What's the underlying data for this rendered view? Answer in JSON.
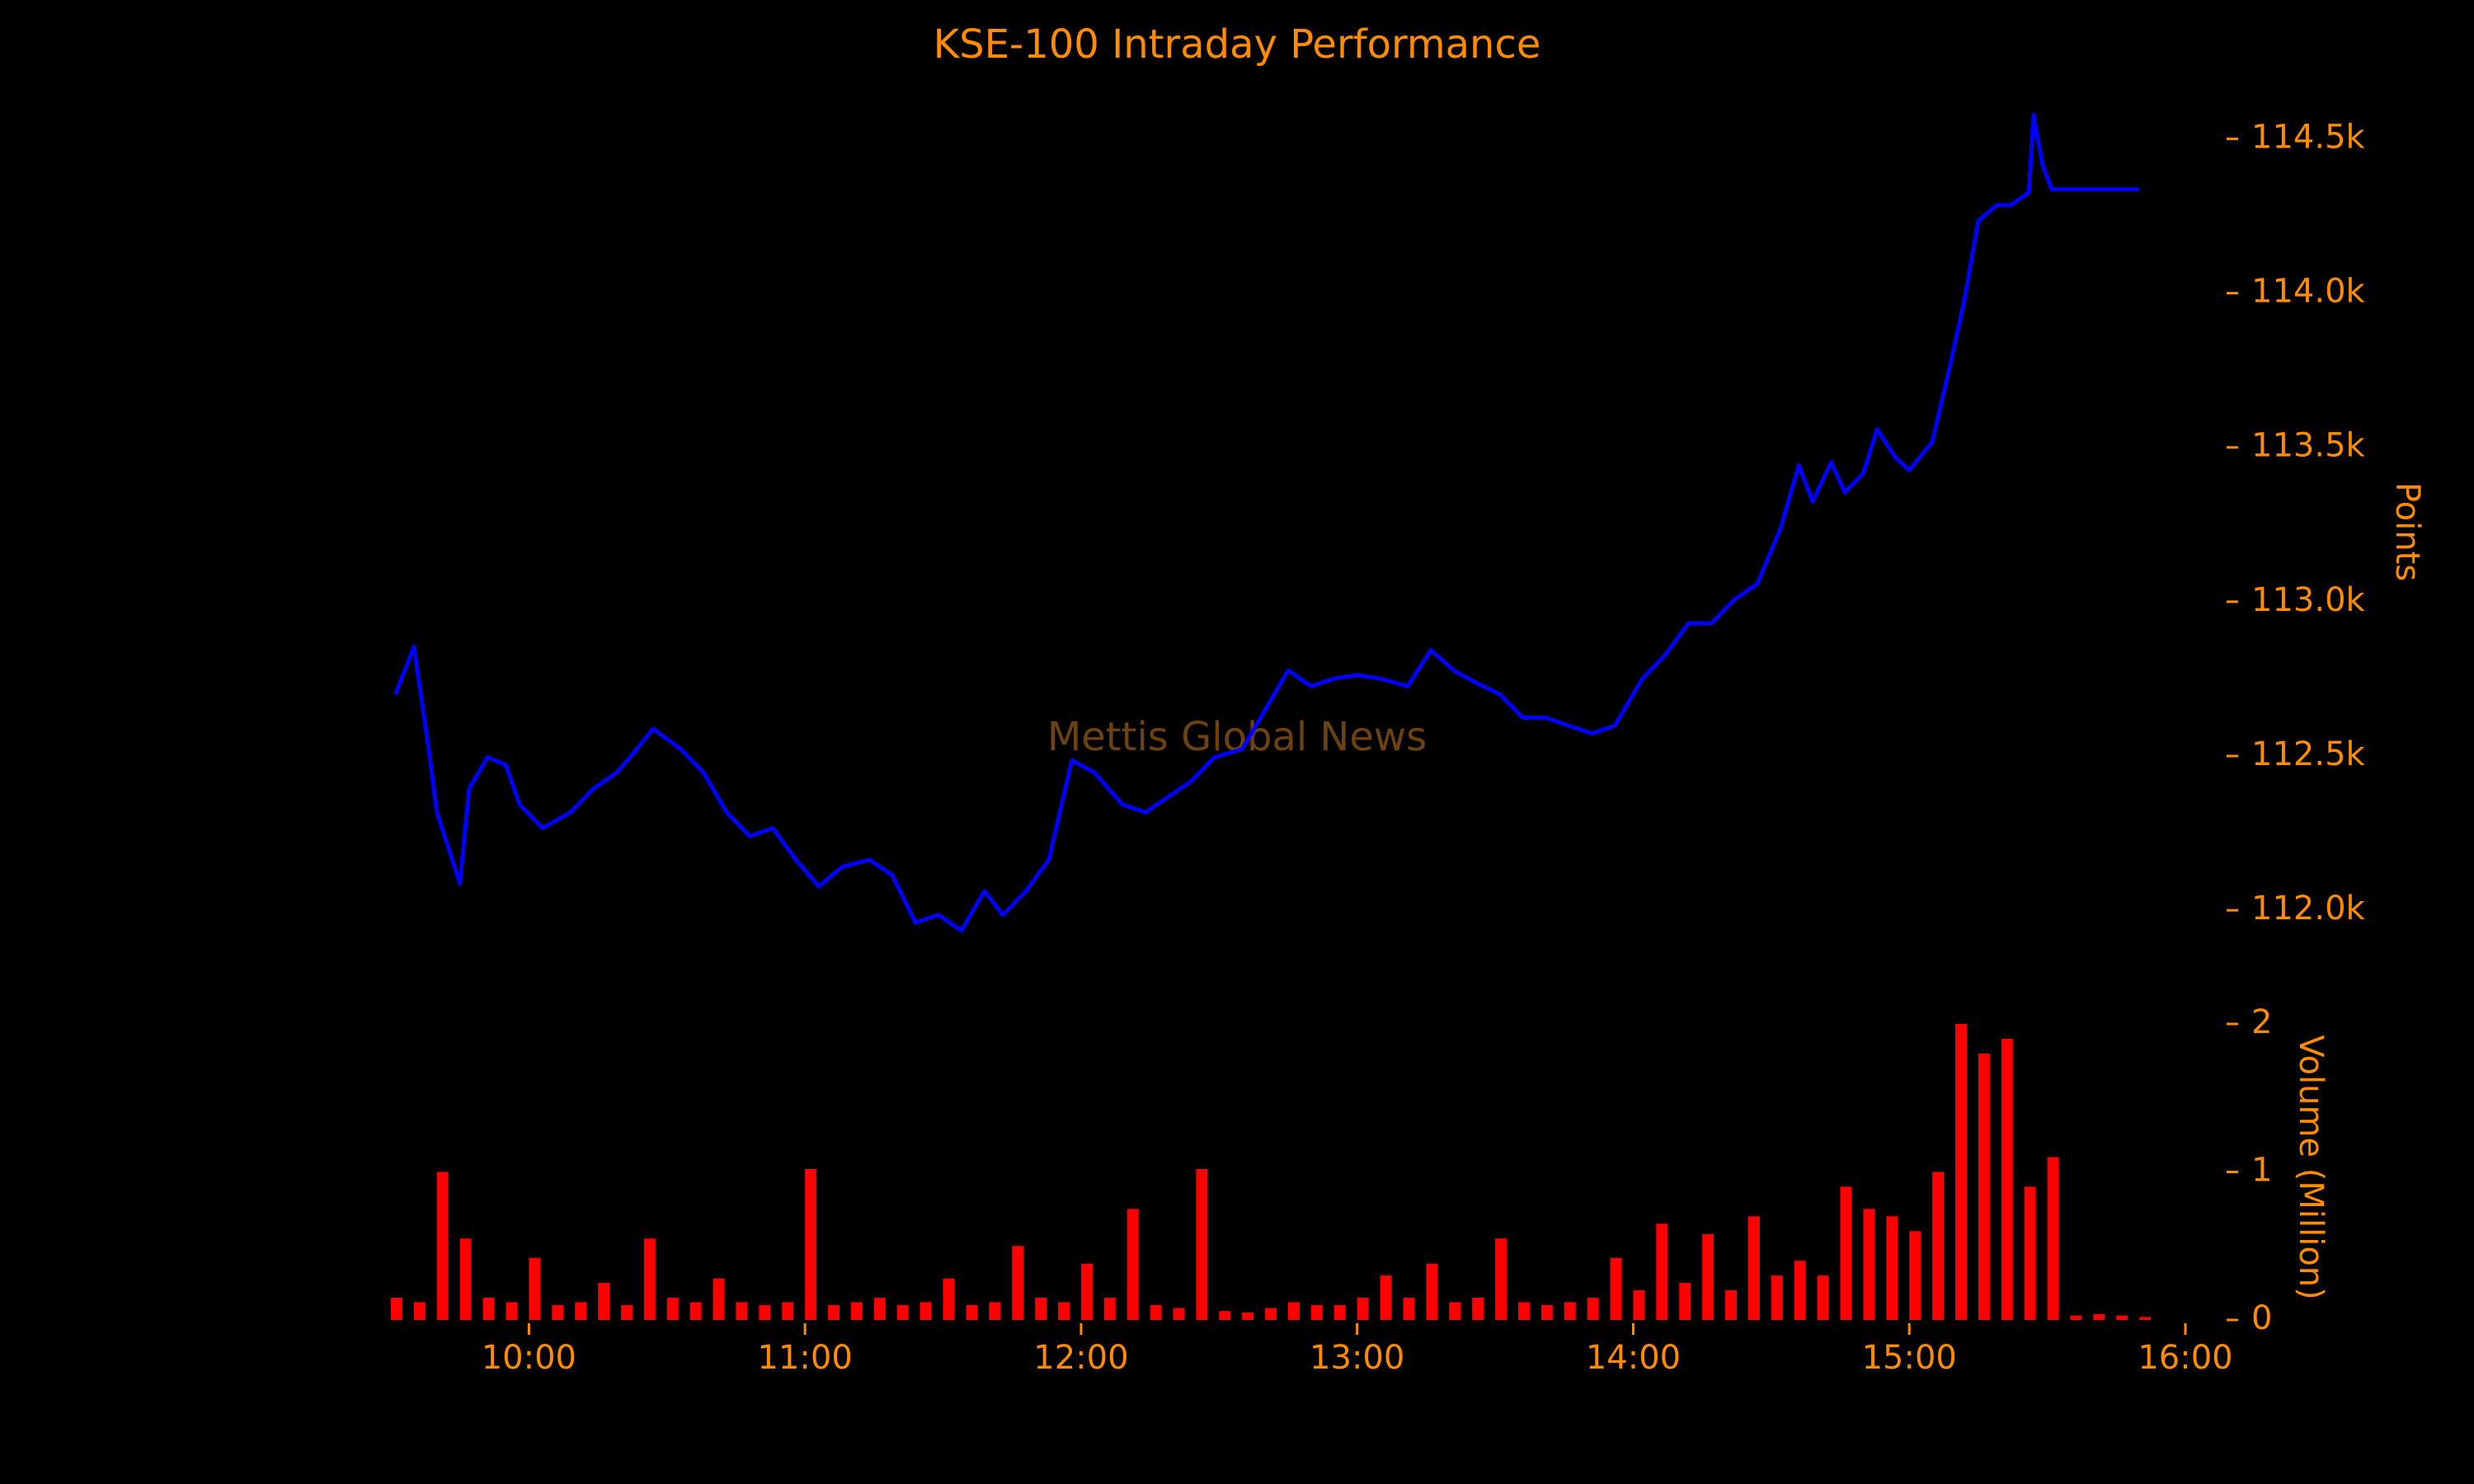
{
  "chart_data": [
    {
      "type": "line",
      "title": "KSE-100 Intraday Performance",
      "watermark": "Mettis Global News",
      "y_label": "Points",
      "x": [
        "09:31",
        "09:35",
        "09:38",
        "09:40",
        "09:45",
        "09:47",
        "09:51",
        "09:55",
        "09:58",
        "10:03",
        "10:09",
        "10:14",
        "10:19",
        "10:22",
        "10:27",
        "10:33",
        "10:38",
        "10:43",
        "10:48",
        "10:53",
        "10:58",
        "11:03",
        "11:08",
        "11:14",
        "11:19",
        "11:24",
        "11:29",
        "11:34",
        "11:39",
        "11:43",
        "11:48",
        "11:53",
        "11:58",
        "12:03",
        "12:09",
        "12:14",
        "12:19",
        "12:24",
        "12:29",
        "12:35",
        "12:40",
        "12:45",
        "12:50",
        "12:55",
        "13:00",
        "13:05",
        "13:11",
        "13:16",
        "13:21",
        "13:26",
        "13:31",
        "13:36",
        "13:41",
        "13:46",
        "13:51",
        "13:56",
        "14:02",
        "14:07",
        "14:12",
        "14:17",
        "14:22",
        "14:27",
        "14:32",
        "14:36",
        "14:39",
        "14:43",
        "14:46",
        "14:50",
        "14:53",
        "14:57",
        "15:00",
        "15:05",
        "15:09",
        "15:12",
        "15:15",
        "15:19",
        "15:22",
        "15:26",
        "15:27",
        "15:29",
        "15:31",
        "15:50"
      ],
      "series": [
        {
          "name": "KSE-100",
          "color": "#0000ff",
          "values": [
            112700,
            112854,
            112547,
            112317,
            112087,
            112394,
            112496,
            112470,
            112342,
            112266,
            112317,
            112394,
            112445,
            112496,
            112588,
            112522,
            112445,
            112317,
            112240,
            112266,
            112164,
            112077,
            112140,
            112164,
            112113,
            111960,
            111985,
            111934,
            112062,
            111985,
            112062,
            112164,
            112486,
            112445,
            112342,
            112317,
            112368,
            112419,
            112496,
            112522,
            112649,
            112777,
            112726,
            112751,
            112762,
            112751,
            112726,
            112843,
            112777,
            112736,
            112700,
            112624,
            112624,
            112598,
            112573,
            112598,
            112751,
            112828,
            112930,
            112930,
            113007,
            113058,
            113237,
            113442,
            113324,
            113452,
            113354,
            113416,
            113559,
            113467,
            113426,
            113518,
            113774,
            113979,
            114234,
            114285,
            114285,
            114326,
            114577,
            114413,
            114336,
            114336
          ]
        }
      ],
      "xlim": [
        "09:30",
        "16:00"
      ],
      "ylim": [
        111800,
        114600
      ],
      "yticks": [
        {
          "value": 112000,
          "label": "112.0k"
        },
        {
          "value": 112500,
          "label": "112.5k"
        },
        {
          "value": 113000,
          "label": "113.0k"
        },
        {
          "value": 113500,
          "label": "113.5k"
        },
        {
          "value": 114000,
          "label": "114.0k"
        },
        {
          "value": 114500,
          "label": "114.5k"
        }
      ]
    },
    {
      "type": "bar",
      "y_label": "Volume (Million)",
      "color": "#ff0000",
      "x": [
        "09:30",
        "09:35",
        "09:40",
        "09:45",
        "09:50",
        "09:55",
        "10:00",
        "10:05",
        "10:10",
        "10:15",
        "10:20",
        "10:25",
        "10:30",
        "10:35",
        "10:40",
        "10:45",
        "10:50",
        "10:55",
        "11:00",
        "11:05",
        "11:10",
        "11:15",
        "11:20",
        "11:25",
        "11:30",
        "11:35",
        "11:40",
        "11:45",
        "11:50",
        "11:55",
        "12:00",
        "12:05",
        "12:10",
        "12:15",
        "12:20",
        "12:25",
        "12:30",
        "12:35",
        "12:40",
        "12:45",
        "12:50",
        "12:55",
        "13:00",
        "13:05",
        "13:10",
        "13:15",
        "13:20",
        "13:25",
        "13:30",
        "13:35",
        "13:40",
        "13:45",
        "13:50",
        "13:55",
        "14:00",
        "14:05",
        "14:10",
        "14:15",
        "14:20",
        "14:25",
        "14:30",
        "14:35",
        "14:40",
        "14:45",
        "14:50",
        "14:55",
        "15:00",
        "15:05",
        "15:10",
        "15:15",
        "15:20",
        "15:25",
        "15:30",
        "15:35",
        "15:40",
        "15:45",
        "15:50"
      ],
      "values": [
        0.15,
        0.12,
        1.0,
        0.55,
        0.15,
        0.12,
        0.42,
        0.1,
        0.12,
        0.25,
        0.1,
        0.55,
        0.15,
        0.12,
        0.28,
        0.12,
        0.1,
        0.12,
        1.02,
        0.1,
        0.12,
        0.15,
        0.1,
        0.12,
        0.28,
        0.1,
        0.12,
        0.5,
        0.15,
        0.12,
        0.38,
        0.15,
        0.75,
        0.1,
        0.08,
        1.02,
        0.06,
        0.05,
        0.08,
        0.12,
        0.1,
        0.1,
        0.15,
        0.3,
        0.15,
        0.38,
        0.12,
        0.15,
        0.55,
        0.12,
        0.1,
        0.12,
        0.15,
        0.42,
        0.2,
        0.65,
        0.25,
        0.58,
        0.2,
        0.7,
        0.3,
        0.4,
        0.3,
        0.9,
        0.75,
        0.7,
        0.6,
        1.0,
        2.0,
        1.8,
        1.9,
        0.9,
        1.1,
        0.03,
        0.04,
        0.03,
        0.02
      ],
      "xlim": [
        "09:30",
        "16:00"
      ],
      "xticks": [
        "10:00",
        "11:00",
        "12:00",
        "13:00",
        "14:00",
        "15:00",
        "16:00"
      ],
      "ylim": [
        0,
        2
      ],
      "yticks": [
        0,
        1,
        2
      ]
    }
  ]
}
